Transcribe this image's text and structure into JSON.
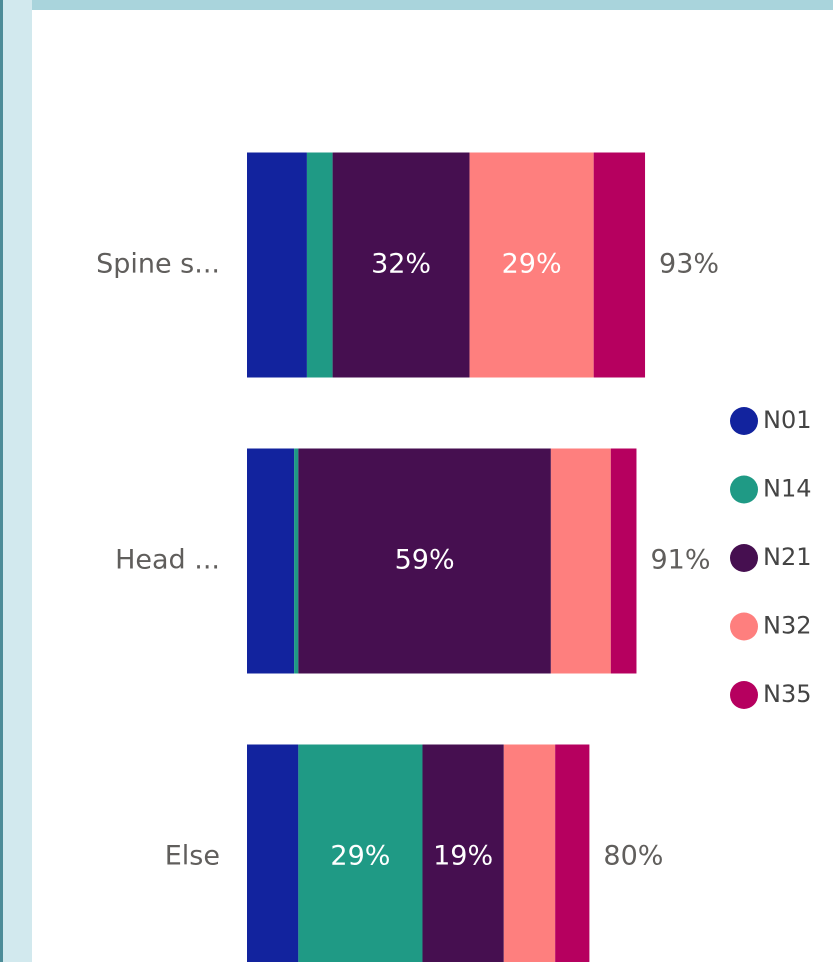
{
  "chart_data": {
    "type": "stacked-bar",
    "categories": [
      "Spine s...",
      "Head ...",
      "Else"
    ],
    "series": [
      {
        "name": "N01",
        "color": "#12239e",
        "values": [
          14,
          11,
          12
        ]
      },
      {
        "name": "N14",
        "color": "#1f9a85",
        "values": [
          6,
          1,
          29
        ],
        "value_labels": [
          null,
          null,
          "29%"
        ]
      },
      {
        "name": "N21",
        "color": "#460f50",
        "values": [
          32,
          59,
          19
        ],
        "value_labels": [
          "32%",
          "59%",
          "19%"
        ]
      },
      {
        "name": "N32",
        "color": "#fe7f7e",
        "values": [
          29,
          14,
          12
        ],
        "value_labels": [
          "29%",
          null,
          null
        ]
      },
      {
        "name": "N35",
        "color": "#b6005f",
        "values": [
          12,
          6,
          8
        ]
      }
    ],
    "totals": [
      93,
      91,
      80
    ],
    "total_labels": [
      "93%",
      "91%",
      "80%"
    ],
    "xlim": [
      0,
      100
    ]
  }
}
